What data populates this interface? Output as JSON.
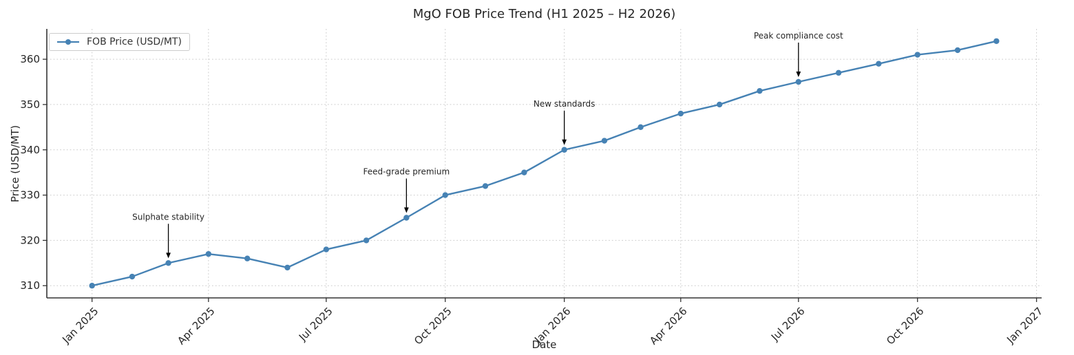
{
  "chart_data": {
    "type": "line",
    "title": "MgO FOB Price Trend (H1 2025 – H2 2026)",
    "xlabel": "Date",
    "ylabel": "Price (USD/MT)",
    "legend": {
      "label": "FOB Price (USD/MT)",
      "position": "upper left"
    },
    "line_color": "#4682b4",
    "grid": true,
    "x": [
      "2025-01",
      "2025-02",
      "2025-03",
      "2025-04",
      "2025-05",
      "2025-06",
      "2025-07",
      "2025-08",
      "2025-09",
      "2025-10",
      "2025-11",
      "2025-12",
      "2026-01",
      "2026-02",
      "2026-03",
      "2026-04",
      "2026-05",
      "2026-06",
      "2026-07",
      "2026-08",
      "2026-09",
      "2026-10",
      "2026-11",
      "2026-12"
    ],
    "values": [
      310,
      312,
      315,
      317,
      316,
      314,
      318,
      320,
      325,
      330,
      332,
      335,
      340,
      342,
      345,
      348,
      350,
      353,
      355,
      357,
      359,
      361,
      362,
      364
    ],
    "x_ticks": [
      {
        "label": "Jan 2025",
        "date": "2025-01"
      },
      {
        "label": "Apr 2025",
        "date": "2025-04"
      },
      {
        "label": "Jul 2025",
        "date": "2025-07"
      },
      {
        "label": "Oct 2025",
        "date": "2025-10"
      },
      {
        "label": "Jan 2026",
        "date": "2026-01"
      },
      {
        "label": "Apr 2026",
        "date": "2026-04"
      },
      {
        "label": "Jul 2026",
        "date": "2026-07"
      },
      {
        "label": "Oct 2026",
        "date": "2026-10"
      },
      {
        "label": "Jan 2027",
        "date": "2027-01"
      }
    ],
    "y_ticks": [
      310,
      320,
      330,
      340,
      350,
      360
    ],
    "annotations": [
      {
        "label": "Sulphate stability",
        "x": "2025-03",
        "y": 315
      },
      {
        "label": "Feed-grade premium",
        "x": "2025-09",
        "y": 325
      },
      {
        "label": "New standards",
        "x": "2026-01",
        "y": 340
      },
      {
        "label": "Peak compliance cost",
        "x": "2026-07",
        "y": 355
      }
    ],
    "colors": {
      "grid": "#cccccc",
      "spine": "#333333",
      "tick": "#333333",
      "text": "#262626",
      "annotation_arrow": "#000000"
    }
  }
}
